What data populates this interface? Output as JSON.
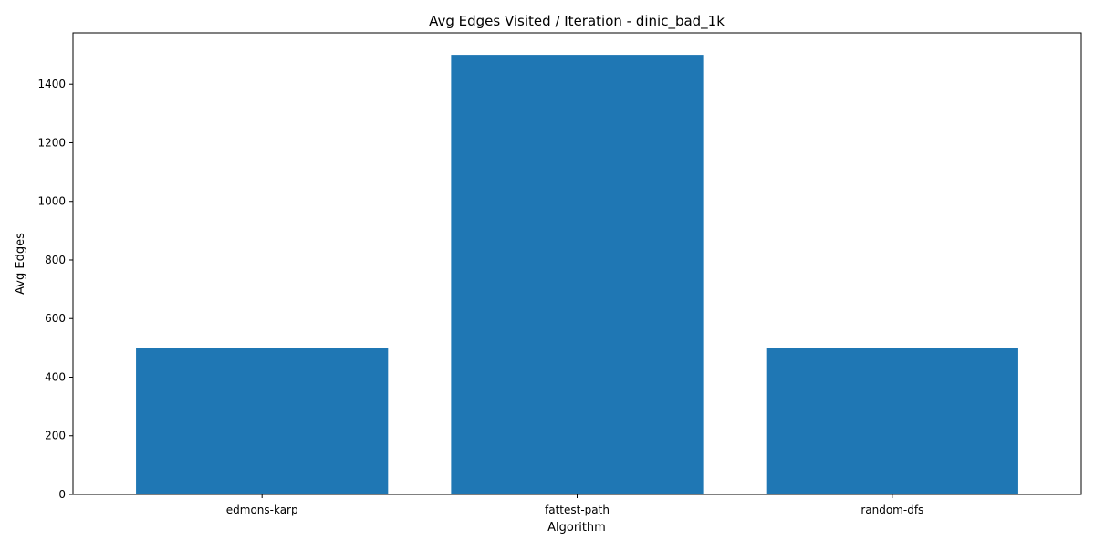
{
  "chart_data": {
    "type": "bar",
    "title": "Avg Edges Visited / Iteration - dinic_bad_1k",
    "xlabel": "Algorithm",
    "ylabel": "Avg Edges",
    "categories": [
      "edmons-karp",
      "fattest-path",
      "random-dfs"
    ],
    "values": [
      500,
      1500,
      500
    ],
    "ylim": [
      0,
      1575
    ],
    "yticks": [
      0,
      200,
      400,
      600,
      800,
      1000,
      1200,
      1400
    ],
    "grid": false,
    "legend": "none",
    "bar_color": "#1f77b4"
  }
}
